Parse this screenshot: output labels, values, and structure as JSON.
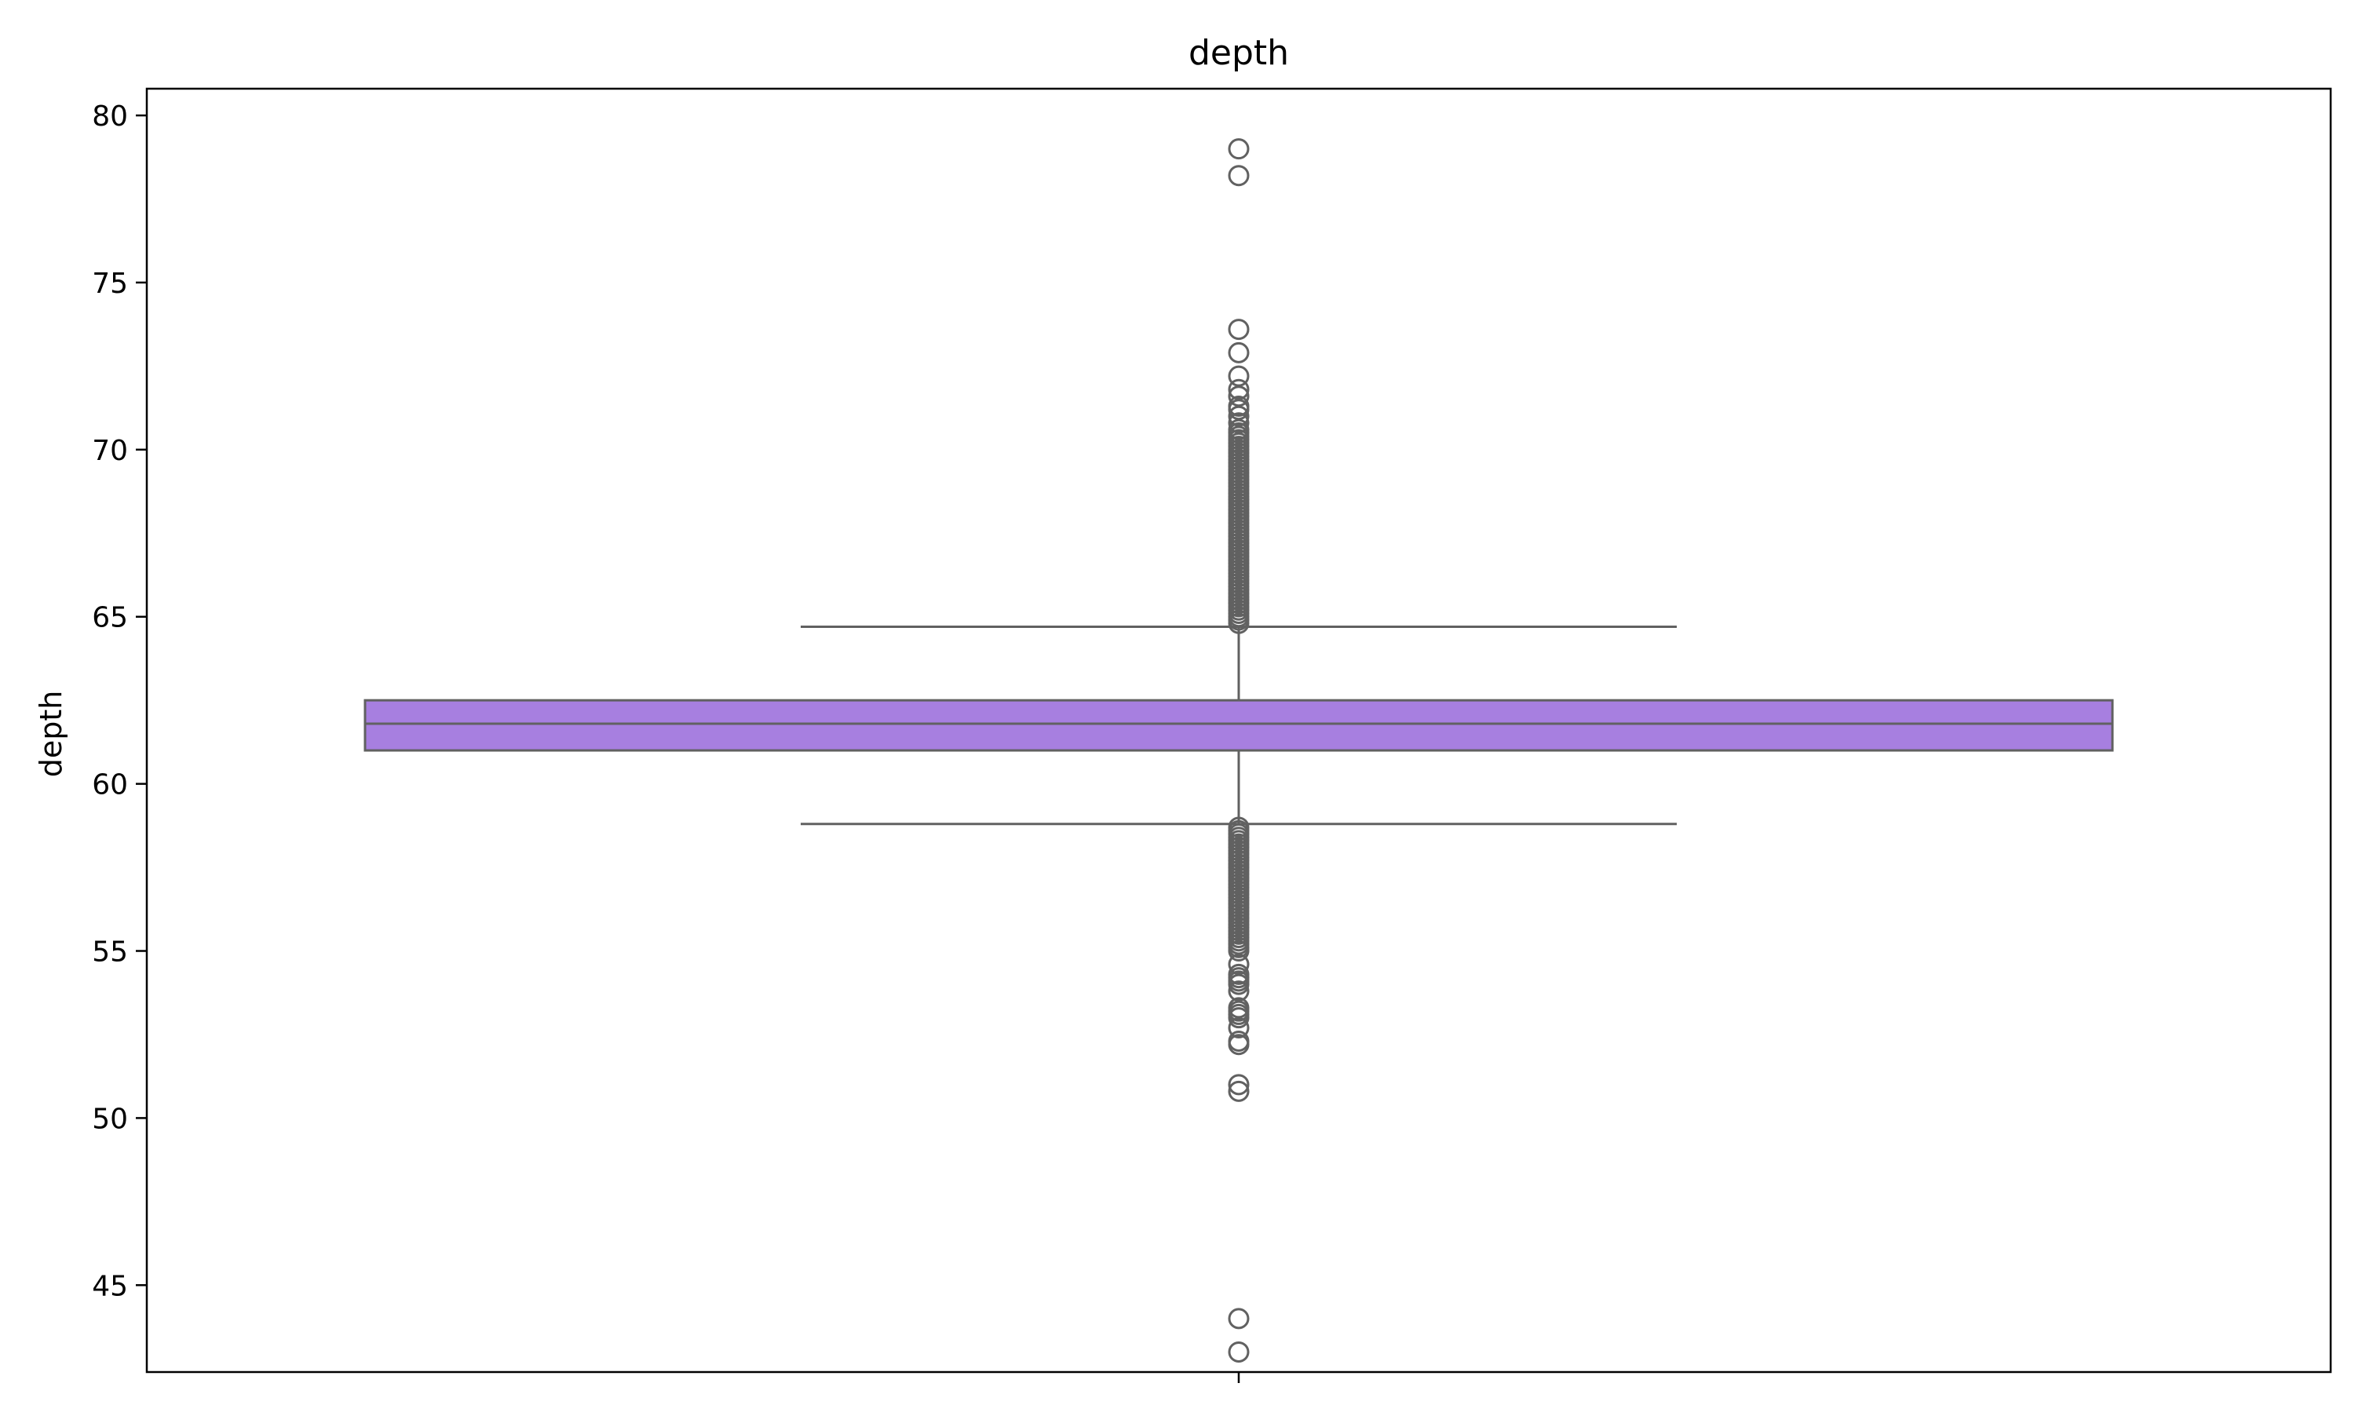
{
  "chart_data": {
    "type": "box",
    "title": "depth",
    "xlabel": "",
    "ylabel": "depth",
    "ylim": [
      42.4,
      80.8
    ],
    "yticks": [
      45,
      50,
      55,
      60,
      65,
      70,
      75,
      80
    ],
    "grid": false,
    "legend": "none",
    "box": {
      "q1": 61.0,
      "median": 61.8,
      "q3": 62.5,
      "whisker_low": 58.8,
      "whisker_high": 64.7,
      "fill_color": "#a77fe0",
      "line_color": "#616161"
    },
    "outliers": [
      43.0,
      44.0,
      50.8,
      51.0,
      52.2,
      52.3,
      52.7,
      53.0,
      53.1,
      53.2,
      53.3,
      53.8,
      54.0,
      54.1,
      54.2,
      54.3,
      54.6,
      55.0,
      55.1,
      55.2,
      55.3,
      55.4,
      55.5,
      55.6,
      55.7,
      55.8,
      55.9,
      56.0,
      56.1,
      56.2,
      56.3,
      56.4,
      56.5,
      56.6,
      56.7,
      56.8,
      56.9,
      57.0,
      57.1,
      57.2,
      57.3,
      57.4,
      57.5,
      57.6,
      57.7,
      57.8,
      57.9,
      58.0,
      58.1,
      58.2,
      58.3,
      58.4,
      58.5,
      58.6,
      58.7,
      64.8,
      64.9,
      65.0,
      65.1,
      65.2,
      65.3,
      65.4,
      65.5,
      65.6,
      65.7,
      65.8,
      65.9,
      66.0,
      66.1,
      66.2,
      66.3,
      66.4,
      66.5,
      66.6,
      66.7,
      66.8,
      66.9,
      67.0,
      67.1,
      67.2,
      67.3,
      67.4,
      67.5,
      67.6,
      67.7,
      67.8,
      67.9,
      68.0,
      68.1,
      68.2,
      68.3,
      68.4,
      68.5,
      68.6,
      68.7,
      68.8,
      68.9,
      69.0,
      69.1,
      69.2,
      69.3,
      69.4,
      69.5,
      69.6,
      69.7,
      69.8,
      69.9,
      70.0,
      70.1,
      70.2,
      70.3,
      70.4,
      70.5,
      70.6,
      70.8,
      71.0,
      71.2,
      71.3,
      71.6,
      71.8,
      72.2,
      72.9,
      73.6,
      78.2,
      79.0
    ]
  }
}
